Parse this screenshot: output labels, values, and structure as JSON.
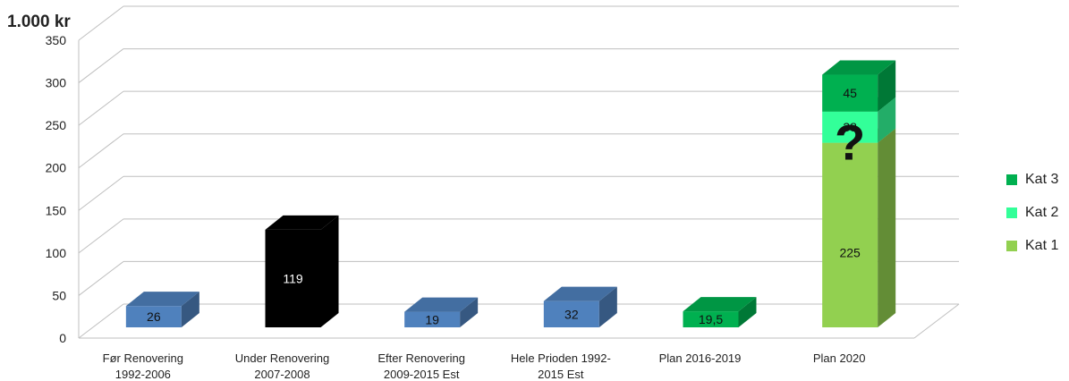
{
  "chart_data": {
    "type": "bar",
    "unit_label": "1.000 kr",
    "categories": [
      [
        "Før Renovering",
        "1992-2006"
      ],
      [
        "Under Renovering",
        "2007-2008"
      ],
      [
        "Efter Renovering",
        "2009-2015 Est"
      ],
      [
        "Hele Prioden 1992-",
        "2015 Est"
      ],
      [
        "Plan 2016-2019"
      ],
      [
        "Plan 2020"
      ]
    ],
    "values": [
      26,
      119,
      19,
      32,
      19.5,
      null
    ],
    "value_labels": [
      "26",
      "119",
      "19",
      "32",
      "19,5",
      ""
    ],
    "bar_colors": [
      "#4f81bd",
      "#000000",
      "#4f81bd",
      "#4f81bd",
      "#00b050",
      null
    ],
    "stack": {
      "category_index": 5,
      "segments": [
        {
          "name": "Kat 1",
          "value": 225,
          "label": "225",
          "color": "#92d050"
        },
        {
          "name": "Kat 2",
          "value": 38,
          "label": "38",
          "color": "#33ff99"
        },
        {
          "name": "Kat 3",
          "value": 45,
          "label": "45",
          "color": "#00b050"
        }
      ],
      "annotation": "?"
    },
    "ylim": [
      0,
      350
    ],
    "yticks": [
      0,
      50,
      100,
      150,
      200,
      250,
      300,
      350
    ],
    "grid": true,
    "legend": {
      "position": "right",
      "items": [
        {
          "name": "Kat 3",
          "color": "#00b050"
        },
        {
          "name": "Kat 2",
          "color": "#33ff99"
        },
        {
          "name": "Kat 1",
          "color": "#92d050"
        }
      ]
    }
  }
}
